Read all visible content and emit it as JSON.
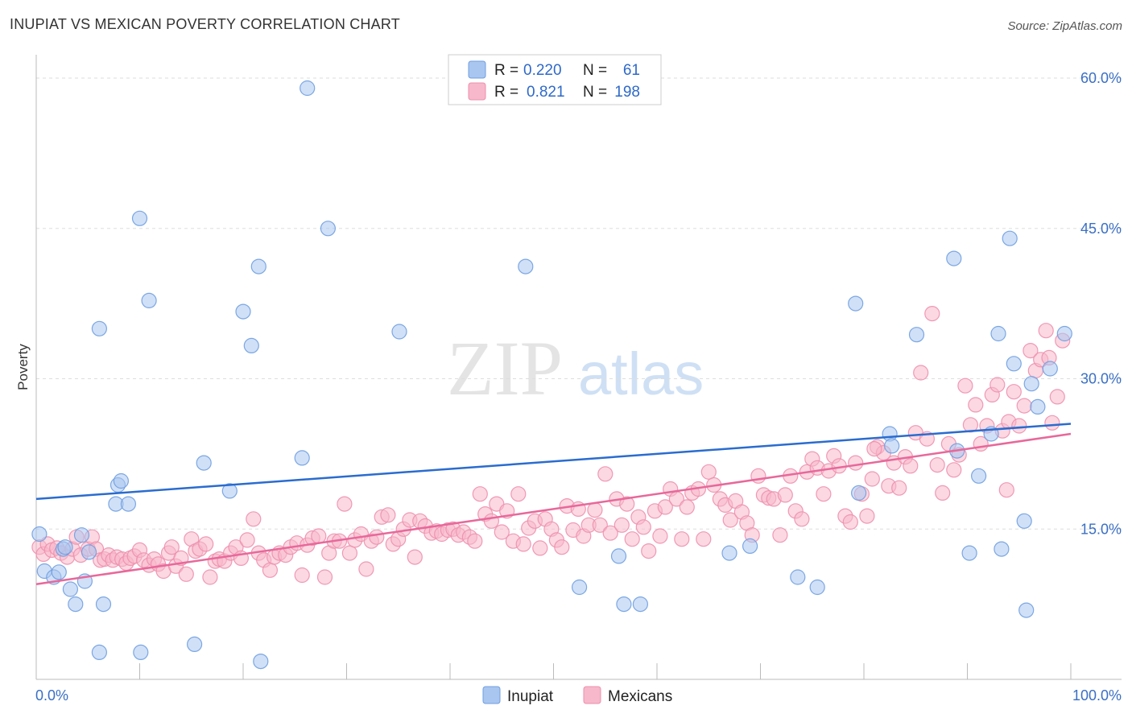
{
  "title": "INUPIAT VS MEXICAN POVERTY CORRELATION CHART",
  "source": "Source: ZipAtlas.com",
  "colors": {
    "inupiat": "#a9c6f0",
    "inupiat_stroke": "#6f9fe0",
    "inupiat_line": "#2a6ccf",
    "mexicans": "#f7b8cb",
    "mexicans_stroke": "#ee8fae",
    "mexicans_line": "#e8689a",
    "tick_label": "#3a6fc4",
    "grid": "#dddddd"
  },
  "legend": {
    "r_label": "R =",
    "n_label": "N =",
    "inupiat_r": "0.220",
    "inupiat_n": "61",
    "mexicans_r": "0.821",
    "mexicans_n": "198"
  },
  "bottom_legend": [
    "Inupiat",
    "Mexicans"
  ],
  "watermark": {
    "zip": "ZIP",
    "atlas": "atlas"
  },
  "chart_data": {
    "type": "scatter",
    "xlabel": "",
    "ylabel": "Poverty",
    "xlim": [
      0,
      100
    ],
    "ylim": [
      0,
      62
    ],
    "x_tick_labels": [
      "0.0%",
      "100.0%"
    ],
    "y_ticks": [
      15,
      30,
      45,
      60
    ],
    "y_tick_labels": [
      "15.0%",
      "30.0%",
      "45.0%",
      "60.0%"
    ],
    "grid": true,
    "legend_position": "top-center",
    "series": [
      {
        "name": "Inupiat",
        "trend": [
          [
            0,
            18.0
          ],
          [
            100,
            25.5
          ]
        ],
        "points": [
          [
            0.3,
            14.5
          ],
          [
            0.8,
            10.8
          ],
          [
            1.7,
            10.2
          ],
          [
            2.2,
            10.7
          ],
          [
            2.6,
            13.0
          ],
          [
            3.3,
            9.0
          ],
          [
            3.8,
            7.5
          ],
          [
            4.4,
            14.4
          ],
          [
            4.7,
            9.8
          ],
          [
            5.1,
            12.7
          ],
          [
            6.1,
            35.0
          ],
          [
            6.5,
            7.5
          ],
          [
            6.1,
            2.7
          ],
          [
            7.7,
            17.5
          ],
          [
            7.9,
            19.4
          ],
          [
            8.2,
            19.8
          ],
          [
            8.9,
            17.5
          ],
          [
            10.0,
            46.0
          ],
          [
            10.1,
            2.7
          ],
          [
            10.9,
            37.8
          ],
          [
            15.3,
            3.5
          ],
          [
            16.2,
            21.6
          ],
          [
            18.7,
            18.8
          ],
          [
            20.0,
            36.7
          ],
          [
            20.8,
            33.3
          ],
          [
            21.5,
            41.2
          ],
          [
            21.7,
            1.8
          ],
          [
            25.7,
            22.1
          ],
          [
            26.2,
            59.0
          ],
          [
            28.2,
            45.0
          ],
          [
            35.1,
            34.7
          ],
          [
            47.3,
            41.2
          ],
          [
            52.5,
            9.2
          ],
          [
            56.3,
            12.3
          ],
          [
            56.8,
            7.5
          ],
          [
            58.4,
            7.5
          ],
          [
            67.0,
            12.6
          ],
          [
            69.0,
            13.3
          ],
          [
            73.6,
            10.2
          ],
          [
            75.5,
            9.2
          ],
          [
            79.2,
            37.5
          ],
          [
            79.5,
            18.6
          ],
          [
            82.5,
            24.5
          ],
          [
            82.7,
            23.3
          ],
          [
            85.1,
            34.4
          ],
          [
            88.7,
            42.0
          ],
          [
            89.0,
            22.8
          ],
          [
            90.2,
            12.6
          ],
          [
            91.1,
            20.3
          ],
          [
            92.3,
            24.5
          ],
          [
            93.0,
            34.5
          ],
          [
            93.3,
            13.0
          ],
          [
            94.1,
            44.0
          ],
          [
            94.5,
            31.5
          ],
          [
            95.5,
            15.8
          ],
          [
            95.7,
            6.9
          ],
          [
            96.2,
            29.5
          ],
          [
            96.8,
            27.2
          ],
          [
            98.0,
            31.0
          ],
          [
            99.4,
            34.5
          ],
          [
            2.8,
            13.2
          ]
        ]
      },
      {
        "name": "Mexicans",
        "trend": [
          [
            0,
            9.5
          ],
          [
            100,
            24.5
          ]
        ],
        "points": [
          [
            0.3,
            13.2
          ],
          [
            0.7,
            12.5
          ],
          [
            1.1,
            13.5
          ],
          [
            1.5,
            12.9
          ],
          [
            2.0,
            13.1
          ],
          [
            2.4,
            12.6
          ],
          [
            3.0,
            12.2
          ],
          [
            3.5,
            13.0
          ],
          [
            3.9,
            14.2
          ],
          [
            4.3,
            12.4
          ],
          [
            5.0,
            13.0
          ],
          [
            5.4,
            14.2
          ],
          [
            5.8,
            13.0
          ],
          [
            6.2,
            11.9
          ],
          [
            6.6,
            12.0
          ],
          [
            7.0,
            12.4
          ],
          [
            7.4,
            11.9
          ],
          [
            7.8,
            12.2
          ],
          [
            8.3,
            12.0
          ],
          [
            8.7,
            11.6
          ],
          [
            9.1,
            12.1
          ],
          [
            9.5,
            12.3
          ],
          [
            10.0,
            12.9
          ],
          [
            10.4,
            11.9
          ],
          [
            10.9,
            11.4
          ],
          [
            11.4,
            12.0
          ],
          [
            11.8,
            11.5
          ],
          [
            12.3,
            10.8
          ],
          [
            12.8,
            12.6
          ],
          [
            13.1,
            13.2
          ],
          [
            13.5,
            11.3
          ],
          [
            14.0,
            12.1
          ],
          [
            14.5,
            10.5
          ],
          [
            15.0,
            14.0
          ],
          [
            15.4,
            12.8
          ],
          [
            15.8,
            13.0
          ],
          [
            16.4,
            13.5
          ],
          [
            16.8,
            10.2
          ],
          [
            17.3,
            11.8
          ],
          [
            17.7,
            12.0
          ],
          [
            18.2,
            11.8
          ],
          [
            18.8,
            12.6
          ],
          [
            19.3,
            13.2
          ],
          [
            19.8,
            12.1
          ],
          [
            20.4,
            13.9
          ],
          [
            21.0,
            16.0
          ],
          [
            21.5,
            12.6
          ],
          [
            22.0,
            11.9
          ],
          [
            22.6,
            10.9
          ],
          [
            23.0,
            12.2
          ],
          [
            23.5,
            12.6
          ],
          [
            24.1,
            12.4
          ],
          [
            24.6,
            13.2
          ],
          [
            25.2,
            13.6
          ],
          [
            25.7,
            10.4
          ],
          [
            26.2,
            13.4
          ],
          [
            26.7,
            14.1
          ],
          [
            27.3,
            14.3
          ],
          [
            27.9,
            10.2
          ],
          [
            28.3,
            12.6
          ],
          [
            28.8,
            13.8
          ],
          [
            29.3,
            13.8
          ],
          [
            29.8,
            17.5
          ],
          [
            30.3,
            12.6
          ],
          [
            30.8,
            13.9
          ],
          [
            31.4,
            14.5
          ],
          [
            31.9,
            11.0
          ],
          [
            32.4,
            13.8
          ],
          [
            32.9,
            14.2
          ],
          [
            33.4,
            16.2
          ],
          [
            34.0,
            16.4
          ],
          [
            34.5,
            13.5
          ],
          [
            35.0,
            14.0
          ],
          [
            35.5,
            15.0
          ],
          [
            36.1,
            15.9
          ],
          [
            36.6,
            12.2
          ],
          [
            37.1,
            15.8
          ],
          [
            37.6,
            15.3
          ],
          [
            38.2,
            14.6
          ],
          [
            38.7,
            14.8
          ],
          [
            39.2,
            14.5
          ],
          [
            39.8,
            14.9
          ],
          [
            40.3,
            15.0
          ],
          [
            40.8,
            14.4
          ],
          [
            41.3,
            14.7
          ],
          [
            41.9,
            14.2
          ],
          [
            42.4,
            13.8
          ],
          [
            42.9,
            18.5
          ],
          [
            43.4,
            16.5
          ],
          [
            44.0,
            15.8
          ],
          [
            44.5,
            17.5
          ],
          [
            45.0,
            14.7
          ],
          [
            45.5,
            16.8
          ],
          [
            46.1,
            13.8
          ],
          [
            46.6,
            18.5
          ],
          [
            47.1,
            13.5
          ],
          [
            47.6,
            15.1
          ],
          [
            48.2,
            15.8
          ],
          [
            48.7,
            13.1
          ],
          [
            49.2,
            16.0
          ],
          [
            49.8,
            15.0
          ],
          [
            50.3,
            13.9
          ],
          [
            50.8,
            13.2
          ],
          [
            51.3,
            17.3
          ],
          [
            51.9,
            14.9
          ],
          [
            52.4,
            17.0
          ],
          [
            52.9,
            14.3
          ],
          [
            53.4,
            15.4
          ],
          [
            54.0,
            16.9
          ],
          [
            54.5,
            15.4
          ],
          [
            55.0,
            20.5
          ],
          [
            55.5,
            14.6
          ],
          [
            56.1,
            18.0
          ],
          [
            56.6,
            15.4
          ],
          [
            57.1,
            17.5
          ],
          [
            57.6,
            14.0
          ],
          [
            58.2,
            16.2
          ],
          [
            58.7,
            15.2
          ],
          [
            59.2,
            12.8
          ],
          [
            59.8,
            16.8
          ],
          [
            60.3,
            14.3
          ],
          [
            60.8,
            17.2
          ],
          [
            61.3,
            19.0
          ],
          [
            61.9,
            18.0
          ],
          [
            62.4,
            14.0
          ],
          [
            62.9,
            17.2
          ],
          [
            63.4,
            18.6
          ],
          [
            64.0,
            19.0
          ],
          [
            64.5,
            14.0
          ],
          [
            65.0,
            20.7
          ],
          [
            65.5,
            19.4
          ],
          [
            66.1,
            18.0
          ],
          [
            66.6,
            17.4
          ],
          [
            67.1,
            15.9
          ],
          [
            67.6,
            17.8
          ],
          [
            68.2,
            16.7
          ],
          [
            68.7,
            15.6
          ],
          [
            69.2,
            14.4
          ],
          [
            69.8,
            20.3
          ],
          [
            70.3,
            18.4
          ],
          [
            70.8,
            18.1
          ],
          [
            71.3,
            18.0
          ],
          [
            71.9,
            14.4
          ],
          [
            72.4,
            18.4
          ],
          [
            72.9,
            20.3
          ],
          [
            73.4,
            16.8
          ],
          [
            74.0,
            16.0
          ],
          [
            74.5,
            20.7
          ],
          [
            75.0,
            22.0
          ],
          [
            75.5,
            21.1
          ],
          [
            76.1,
            18.5
          ],
          [
            76.6,
            20.8
          ],
          [
            77.1,
            22.3
          ],
          [
            77.6,
            21.3
          ],
          [
            78.2,
            16.3
          ],
          [
            78.7,
            15.7
          ],
          [
            79.2,
            21.6
          ],
          [
            79.8,
            18.5
          ],
          [
            80.3,
            16.3
          ],
          [
            80.8,
            20.0
          ],
          [
            81.3,
            23.2
          ],
          [
            81.9,
            22.6
          ],
          [
            82.4,
            19.3
          ],
          [
            82.9,
            21.6
          ],
          [
            83.4,
            19.1
          ],
          [
            84.0,
            22.2
          ],
          [
            84.5,
            21.3
          ],
          [
            85.0,
            24.6
          ],
          [
            85.5,
            30.6
          ],
          [
            86.1,
            24.0
          ],
          [
            86.6,
            36.5
          ],
          [
            87.1,
            21.4
          ],
          [
            87.6,
            18.6
          ],
          [
            88.2,
            23.5
          ],
          [
            88.7,
            20.9
          ],
          [
            89.2,
            22.4
          ],
          [
            89.8,
            29.3
          ],
          [
            90.3,
            25.4
          ],
          [
            90.8,
            27.4
          ],
          [
            91.3,
            23.5
          ],
          [
            91.9,
            25.3
          ],
          [
            92.4,
            28.4
          ],
          [
            92.9,
            29.4
          ],
          [
            93.4,
            24.8
          ],
          [
            94.0,
            25.7
          ],
          [
            94.5,
            28.7
          ],
          [
            95.0,
            25.3
          ],
          [
            95.5,
            27.3
          ],
          [
            96.1,
            32.8
          ],
          [
            96.6,
            30.8
          ],
          [
            97.1,
            31.9
          ],
          [
            97.6,
            34.8
          ],
          [
            98.2,
            25.6
          ],
          [
            98.7,
            28.2
          ],
          [
            99.2,
            33.8
          ],
          [
            93.8,
            18.9
          ],
          [
            81.0,
            23.0
          ],
          [
            97.9,
            32.1
          ]
        ]
      }
    ]
  }
}
